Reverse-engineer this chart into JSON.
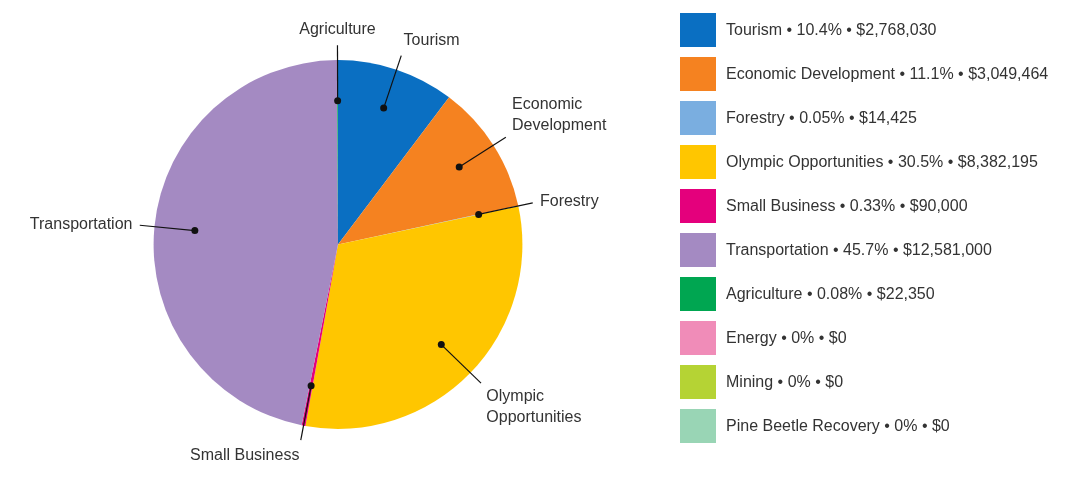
{
  "chart_data": {
    "type": "pie",
    "legend": "right",
    "categories": [
      "Tourism",
      "Economic Development",
      "Forestry",
      "Olympic Opportunities",
      "Small Business",
      "Transportation",
      "Agriculture",
      "Energy",
      "Mining",
      "Pine Beetle Recovery"
    ],
    "values": [
      2768030,
      3049464,
      14425,
      8382195,
      90000,
      12581000,
      22350,
      0,
      0,
      0
    ],
    "value_labels": [
      "• 10.4% • $2,768,030",
      "• 11.1% • $3,049,464",
      "• 0.05% • $14,425",
      "• 30.5% • $8,382,195",
      "• 0.33% • $90,000",
      "• 45.7% • $12,581,000",
      "• 0.08% • $22,350",
      "• 0% • $0",
      "• 0% •  $0",
      "• 0% • $0"
    ],
    "colors": [
      "#0a6fc2",
      "#f58220",
      "#7aaee0",
      "#ffc600",
      "#e4007c",
      "#a48ac2",
      "#00a651",
      "#f08cb8",
      "#b5d334",
      "#99d5b5"
    ]
  }
}
